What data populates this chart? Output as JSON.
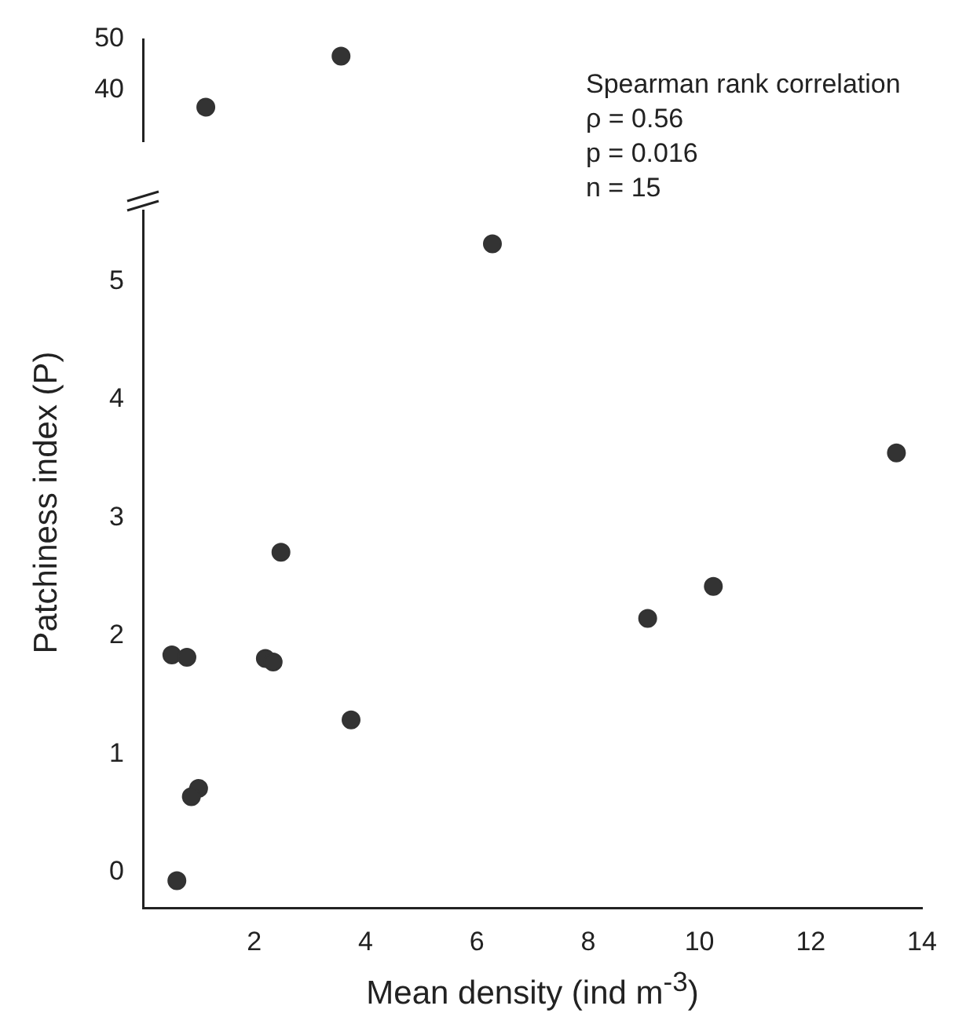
{
  "chart_data": [
    {
      "type": "scatter",
      "x": [
        1.13,
        3.56
      ],
      "values": [
        36.7,
        46.7
      ],
      "color": "#333333",
      "marker": "circle",
      "xlim": [
        0,
        14
      ],
      "ylim": [
        30,
        50
      ],
      "yticks": [
        40,
        50
      ],
      "tick_labels": "y",
      "annotations": [
        "Spearman rank correlation",
        "ρ = 0.56",
        "p = 0.016",
        "n = 15"
      ]
    },
    {
      "type": "scatter",
      "x": [
        6.28,
        13.54,
        10.25,
        9.07,
        2.48,
        0.52,
        0.79,
        2.2,
        2.34,
        3.74,
        1.0,
        0.87,
        0.61
      ],
      "values": [
        5.32,
        3.55,
        2.42,
        2.15,
        2.71,
        1.84,
        1.82,
        1.81,
        1.78,
        1.29,
        0.71,
        0.64,
        -0.07
      ],
      "color": "#333333",
      "marker": "circle",
      "xlim": [
        0,
        14
      ],
      "xticks": [
        2,
        4,
        6,
        8,
        10,
        12,
        14
      ],
      "ylim": [
        -0.3,
        5.6
      ],
      "yticks": [
        0,
        1,
        2,
        3,
        4,
        5
      ],
      "xlabel": "Mean density (ind m$^{-3}$)",
      "ylabel": "Patchiness index (P)"
    }
  ]
}
